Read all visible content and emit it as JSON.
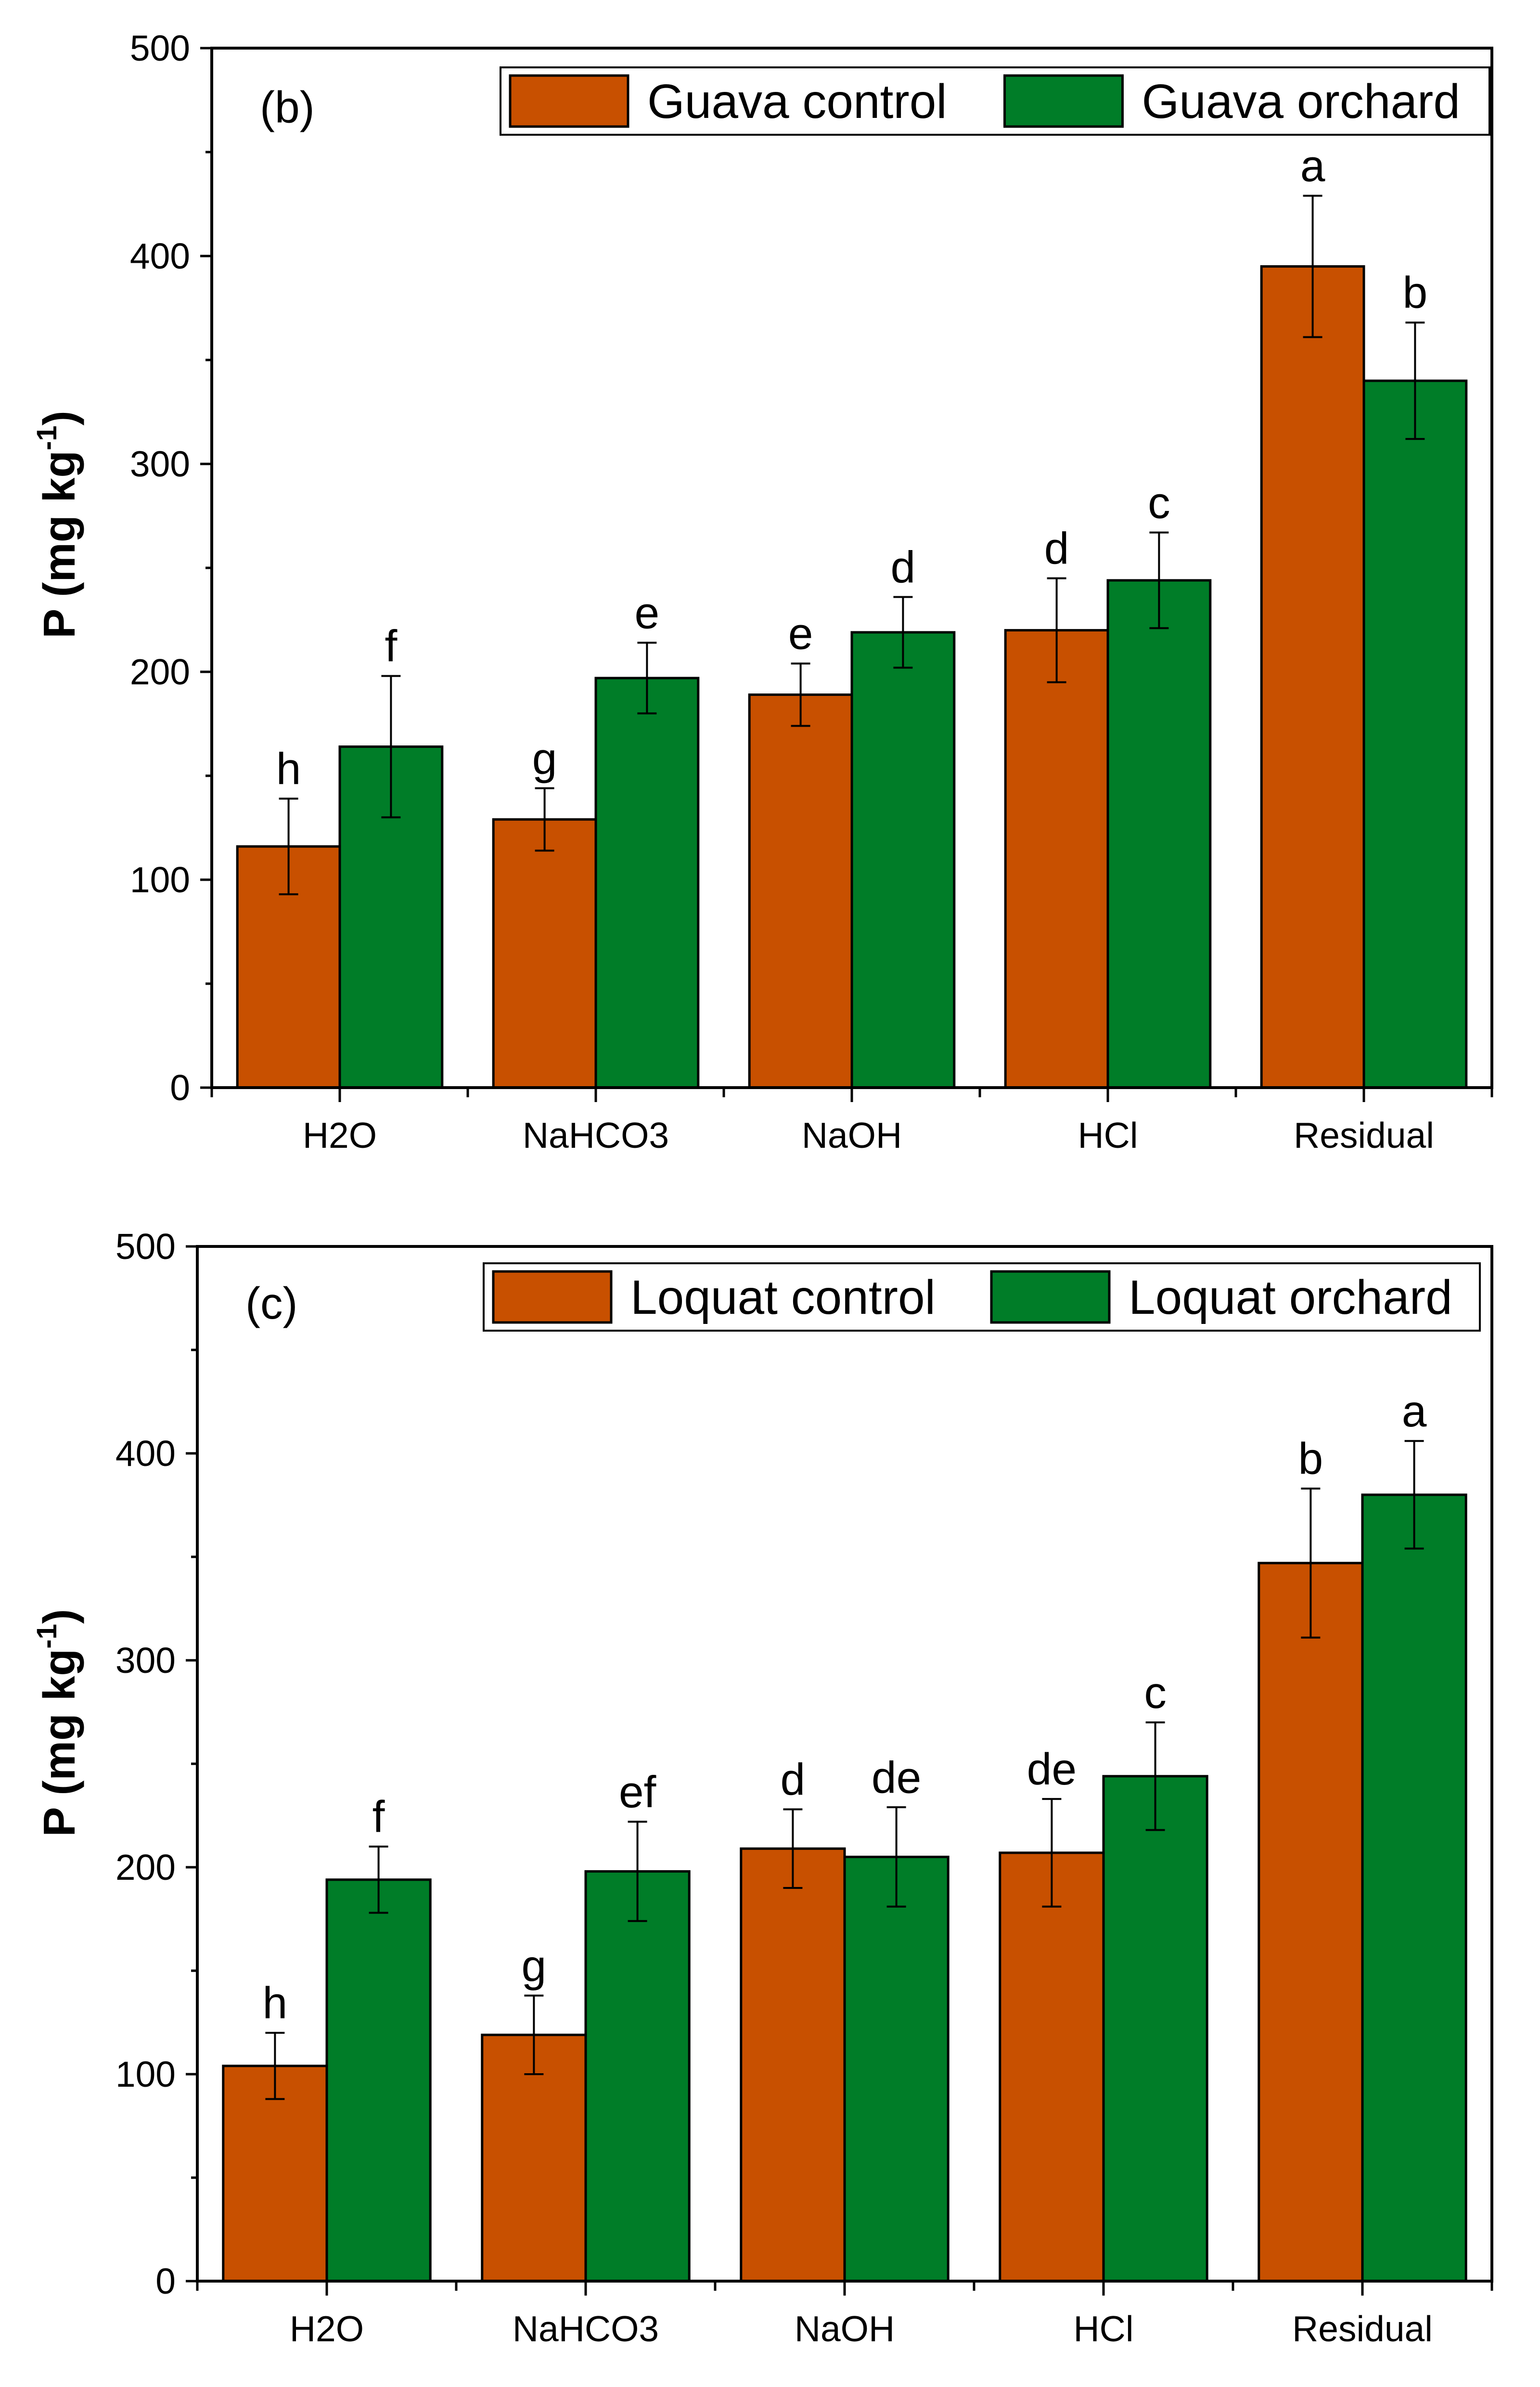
{
  "chart_data": [
    {
      "type": "bar",
      "panel_label": "(b)",
      "ylabel": "P (mg kg",
      "ylabel_sup": "-1",
      "ylabel_tail": ")",
      "ylim": [
        0,
        500
      ],
      "yticks": [
        0,
        100,
        200,
        300,
        400,
        500
      ],
      "categories": [
        "H2O",
        "NaHCO3",
        "NaOH",
        "HCl",
        "Residual"
      ],
      "series": [
        {
          "name": "Guava control",
          "color": "#C85000",
          "values": [
            116,
            129,
            189,
            220,
            395
          ],
          "errors": [
            23,
            15,
            15,
            25,
            34
          ],
          "letters": [
            "h",
            "g",
            "e",
            "d",
            "a"
          ]
        },
        {
          "name": "Guava orchard",
          "color": "#007D28",
          "values": [
            164,
            197,
            219,
            244,
            340
          ],
          "errors": [
            34,
            17,
            17,
            23,
            28
          ],
          "letters": [
            "f",
            "e",
            "d",
            "c",
            "b"
          ]
        }
      ],
      "legend_position": "top-right"
    },
    {
      "type": "bar",
      "panel_label": "(c)",
      "ylabel": "P (mg kg",
      "ylabel_sup": "-1",
      "ylabel_tail": ")",
      "ylim": [
        0,
        500
      ],
      "yticks": [
        0,
        100,
        200,
        300,
        400,
        500
      ],
      "categories": [
        "H2O",
        "NaHCO3",
        "NaOH",
        "HCl",
        "Residual"
      ],
      "series": [
        {
          "name": "Loquat control",
          "color": "#C85000",
          "values": [
            104,
            119,
            209,
            207,
            347
          ],
          "errors": [
            16,
            19,
            19,
            26,
            36
          ],
          "letters": [
            "h",
            "g",
            "d",
            "de",
            "b"
          ]
        },
        {
          "name": "Loquat orchard",
          "color": "#007D28",
          "values": [
            194,
            198,
            205,
            244,
            380
          ],
          "errors": [
            16,
            24,
            24,
            26,
            26
          ],
          "letters": [
            "f",
            "ef",
            "de",
            "c",
            "a"
          ]
        }
      ],
      "legend_position": "top-right"
    }
  ]
}
